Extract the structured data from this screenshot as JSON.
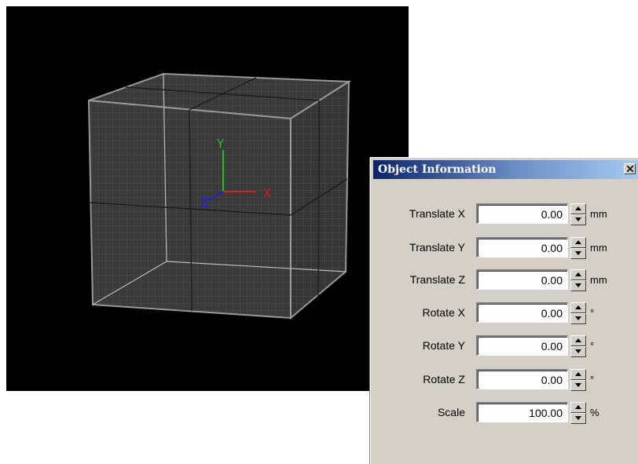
{
  "viewport": {
    "axis_labels": {
      "x": "X",
      "y": "Y",
      "z": "Z"
    },
    "colors": {
      "background": "#000000",
      "cube_face": "#3a3a3a",
      "cube_edge": "#9a9a9a",
      "grid": "#5a5a5a",
      "axis_x": "#d42020",
      "axis_y": "#20c020",
      "axis_z": "#2020d8"
    }
  },
  "dialog": {
    "title": "Object Information",
    "close_icon": "close-icon",
    "fields": [
      {
        "id": "translate-x",
        "label": "Translate X",
        "value": "0.00",
        "unit": "mm"
      },
      {
        "id": "translate-y",
        "label": "Translate Y",
        "value": "0.00",
        "unit": "mm"
      },
      {
        "id": "translate-z",
        "label": "Translate Z",
        "value": "0.00",
        "unit": "mm"
      },
      {
        "id": "rotate-x",
        "label": "Rotate X",
        "value": "0.00",
        "unit": "°"
      },
      {
        "id": "rotate-y",
        "label": "Rotate Y",
        "value": "0.00",
        "unit": "°"
      },
      {
        "id": "rotate-z",
        "label": "Rotate Z",
        "value": "0.00",
        "unit": "°"
      },
      {
        "id": "scale",
        "label": "Scale",
        "value": "100.00",
        "unit": "%"
      }
    ]
  }
}
